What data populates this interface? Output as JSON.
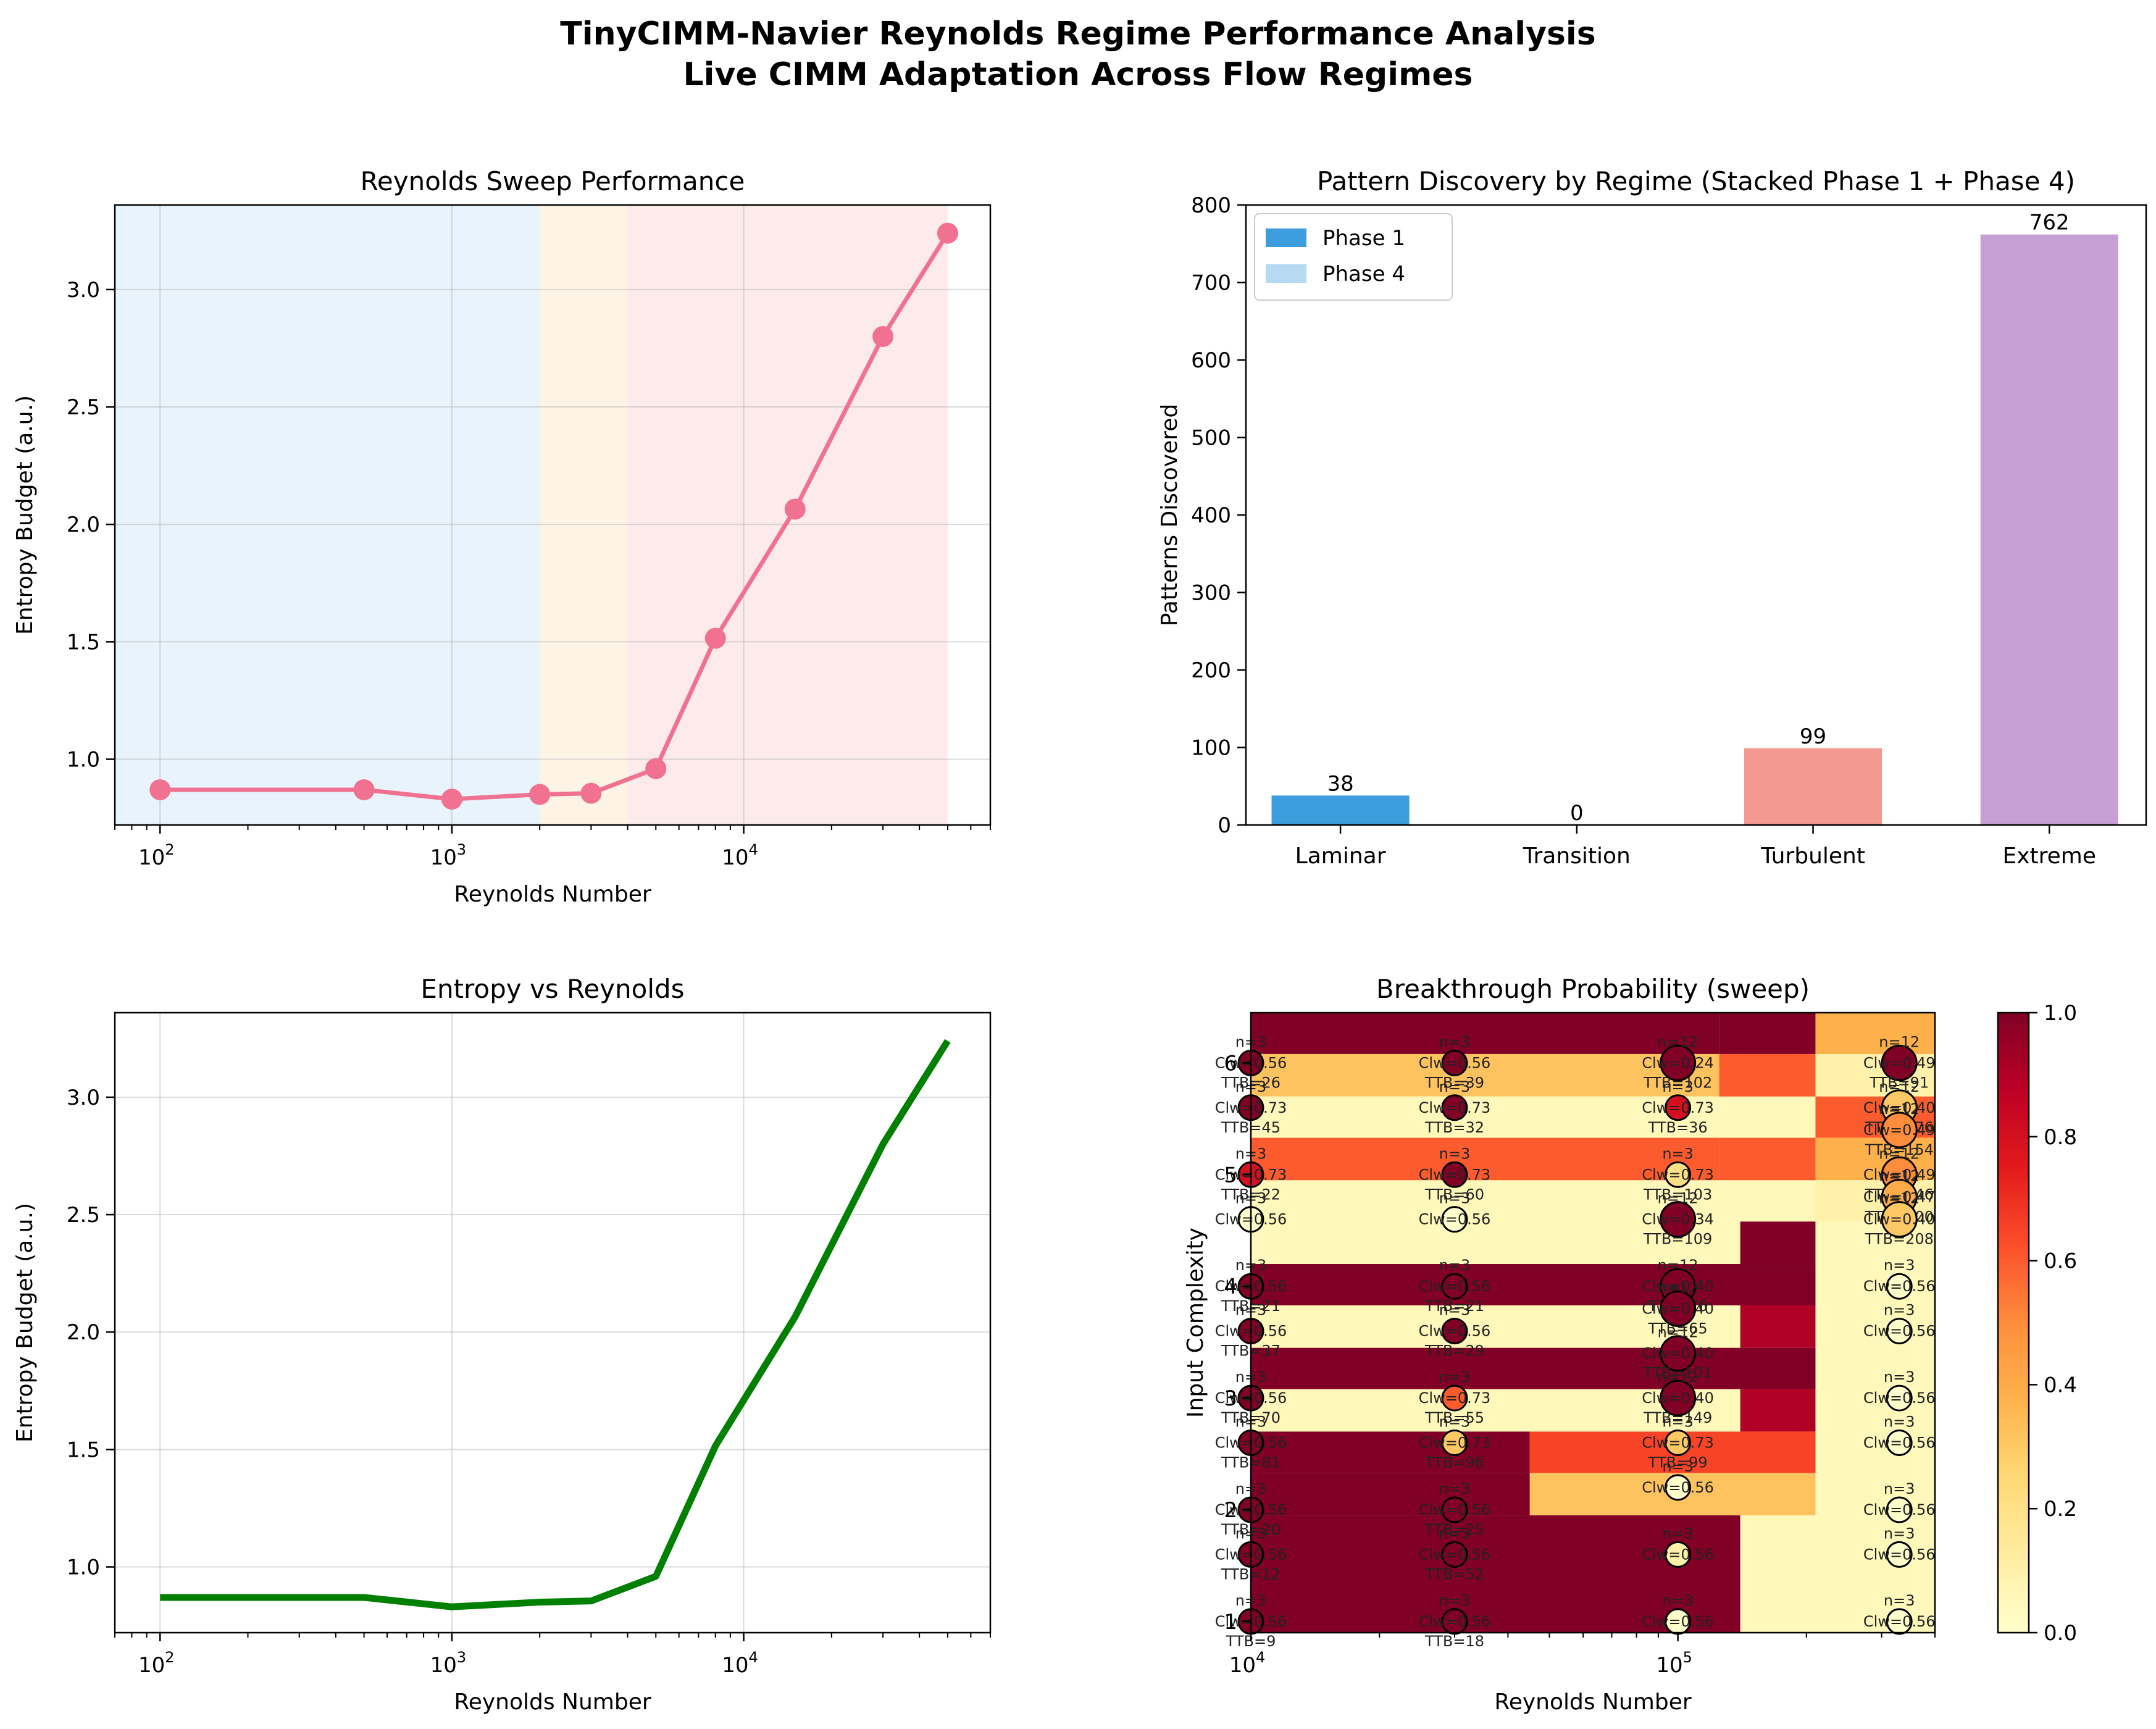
{
  "figure": {
    "title_line1": "TinyCIMM-Navier Reynolds Regime Performance Analysis",
    "title_line2": "Live CIMM Adaptation Across Flow Regimes"
  },
  "chart_data": [
    {
      "id": "sweep",
      "type": "line",
      "title": "Reynolds Sweep Performance",
      "xlabel": "Reynolds Number",
      "ylabel": "Entropy Budget (a.u.)",
      "xscale": "log",
      "xlim": [
        70,
        70000
      ],
      "ylim": [
        0.72,
        3.36
      ],
      "xticks": [
        {
          "v": 100,
          "exp": "2"
        },
        {
          "v": 1000,
          "exp": "3"
        },
        {
          "v": 10000,
          "exp": "4"
        }
      ],
      "yticks": [
        1.0,
        1.5,
        2.0,
        2.5,
        3.0
      ],
      "grid": true,
      "regime_bands": [
        {
          "from": 70,
          "to": 2000,
          "color": "#d6eaf8"
        },
        {
          "from": 2000,
          "to": 4000,
          "color": "#fdebd0"
        },
        {
          "from": 4000,
          "to": 50000,
          "color": "#fadbd8"
        }
      ],
      "color": "#f07290",
      "x": [
        100,
        500,
        1000,
        2000,
        3000,
        5000,
        8000,
        15000,
        30000,
        50000
      ],
      "y": [
        0.87,
        0.87,
        0.83,
        0.85,
        0.855,
        0.96,
        1.515,
        2.065,
        2.8,
        3.24
      ]
    },
    {
      "id": "patterns",
      "type": "bar",
      "title": "Pattern Discovery by Regime (Stacked Phase 1 + Phase 4)",
      "ylabel": "Patterns Discovered",
      "ylim": [
        0,
        800
      ],
      "yticks": [
        0,
        100,
        200,
        300,
        400,
        500,
        600,
        700,
        800
      ],
      "categories": [
        "Laminar",
        "Transition",
        "Turbulent",
        "Extreme"
      ],
      "series": [
        {
          "name": "Phase 1",
          "color": "#3498db",
          "values": [
            38,
            0,
            99,
            762
          ]
        },
        {
          "name": "Phase 4",
          "color": "#85c1e9",
          "values": [
            0,
            0,
            0,
            0
          ]
        }
      ],
      "bar_colors": [
        "#3498db",
        "#f39c12",
        "#f1948a",
        "#c39bd3"
      ],
      "totals": [
        "38",
        "0",
        "99",
        "762"
      ],
      "legend": "top-left"
    },
    {
      "id": "entropy",
      "type": "line",
      "title": "Entropy vs Reynolds",
      "xlabel": "Reynolds Number",
      "ylabel": "Entropy Budget (a.u.)",
      "xscale": "log",
      "xlim": [
        70,
        70000
      ],
      "ylim": [
        0.72,
        3.36
      ],
      "xticks": [
        {
          "v": 100,
          "exp": "2"
        },
        {
          "v": 1000,
          "exp": "3"
        },
        {
          "v": 10000,
          "exp": "4"
        }
      ],
      "yticks": [
        1.0,
        1.5,
        2.0,
        2.5,
        3.0
      ],
      "grid": true,
      "color": "#008000",
      "x": [
        100,
        500,
        1000,
        2000,
        3000,
        5000,
        8000,
        15000,
        30000,
        50000
      ],
      "y": [
        0.87,
        0.87,
        0.83,
        0.85,
        0.855,
        0.96,
        1.515,
        2.065,
        2.8,
        3.24
      ]
    },
    {
      "id": "breakthrough",
      "type": "heatmap",
      "title": "Breakthrough Probability (sweep)",
      "xlabel": "Reynolds Number",
      "ylabel": "Input Complexity",
      "xscale": "log",
      "xlim": [
        10000,
        400000
      ],
      "ylim": [
        0.9,
        6.45
      ],
      "xticks": [
        {
          "v": 10000,
          "exp": "4"
        },
        {
          "v": 100000,
          "exp": "5"
        }
      ],
      "yticks": [
        1,
        2,
        3,
        4,
        5,
        6
      ],
      "colorbar": {
        "min": 0.0,
        "max": 1.0,
        "ticks": [
          "0.0",
          "0.2",
          "0.4",
          "0.6",
          "0.8",
          "1.0"
        ],
        "colormap": "YlOrRd"
      },
      "cells": [
        {
          "x0": 10000,
          "x1": 125000,
          "y0": 6.08,
          "y1": 6.45,
          "v": 1.0
        },
        {
          "x0": 125000,
          "x1": 210000,
          "y0": 6.08,
          "y1": 6.45,
          "v": 1.0
        },
        {
          "x0": 210000,
          "x1": 400000,
          "y0": 6.08,
          "y1": 6.45,
          "v": 0.38
        },
        {
          "x0": 10000,
          "x1": 125000,
          "y0": 5.7,
          "y1": 6.08,
          "v": 0.32
        },
        {
          "x0": 125000,
          "x1": 210000,
          "y0": 5.7,
          "y1": 6.08,
          "v": 0.6
        },
        {
          "x0": 210000,
          "x1": 400000,
          "y0": 5.7,
          "y1": 6.08,
          "v": 0.1
        },
        {
          "x0": 10000,
          "x1": 125000,
          "y0": 5.33,
          "y1": 5.7,
          "v": 0.05
        },
        {
          "x0": 210000,
          "x1": 400000,
          "y0": 5.33,
          "y1": 5.7,
          "v": 0.6
        },
        {
          "x0": 10000,
          "x1": 125000,
          "y0": 4.95,
          "y1": 5.33,
          "v": 0.6
        },
        {
          "x0": 125000,
          "x1": 210000,
          "y0": 4.95,
          "y1": 5.33,
          "v": 0.6
        },
        {
          "x0": 210000,
          "x1": 400000,
          "y0": 4.95,
          "y1": 5.33,
          "v": 0.38
        },
        {
          "x0": 10000,
          "x1": 400000,
          "y0": 4.58,
          "y1": 4.95,
          "v": 0.05
        },
        {
          "x0": 210000,
          "x1": 400000,
          "y0": 4.58,
          "y1": 4.95,
          "v": 0.1
        },
        {
          "x0": 10000,
          "x1": 140000,
          "y0": 4.2,
          "y1": 4.58,
          "v": 0.05
        },
        {
          "x0": 140000,
          "x1": 210000,
          "y0": 4.2,
          "y1": 4.58,
          "v": 1.0
        },
        {
          "x0": 210000,
          "x1": 400000,
          "y0": 4.2,
          "y1": 4.58,
          "v": 0.05
        },
        {
          "x0": 10000,
          "x1": 210000,
          "y0": 3.83,
          "y1": 4.2,
          "v": 1.0
        },
        {
          "x0": 10000,
          "x1": 140000,
          "y0": 3.45,
          "y1": 3.83,
          "v": 0.05
        },
        {
          "x0": 140000,
          "x1": 210000,
          "y0": 3.45,
          "y1": 3.83,
          "v": 0.9
        },
        {
          "x0": 10000,
          "x1": 210000,
          "y0": 3.08,
          "y1": 3.45,
          "v": 1.0
        },
        {
          "x0": 10000,
          "x1": 140000,
          "y0": 2.7,
          "y1": 3.08,
          "v": 0.05
        },
        {
          "x0": 140000,
          "x1": 210000,
          "y0": 2.7,
          "y1": 3.08,
          "v": 0.9
        },
        {
          "x0": 10000,
          "x1": 45000,
          "y0": 2.33,
          "y1": 2.7,
          "v": 1.0
        },
        {
          "x0": 45000,
          "x1": 210000,
          "y0": 2.33,
          "y1": 2.7,
          "v": 0.65
        },
        {
          "x0": 10000,
          "x1": 45000,
          "y0": 1.95,
          "y1": 2.33,
          "v": 1.0
        },
        {
          "x0": 45000,
          "x1": 210000,
          "y0": 1.95,
          "y1": 2.33,
          "v": 0.32
        },
        {
          "x0": 10000,
          "x1": 140000,
          "y0": 0.9,
          "y1": 1.95,
          "v": 1.0
        },
        {
          "x0": 140000,
          "x1": 210000,
          "y0": 0.9,
          "y1": 1.95,
          "v": 0.05
        }
      ],
      "points": [
        {
          "x": 10000,
          "y": 6.0,
          "n": "n=3",
          "c": "Clw=0.56",
          "t": "TTB=26",
          "v": 1.0
        },
        {
          "x": 10000,
          "y": 5.6,
          "n": "n=3",
          "c": "Clw=0.73",
          "t": "TTB=45",
          "v": 1.0
        },
        {
          "x": 10000,
          "y": 5.0,
          "n": "n=3",
          "c": "Clw=0.73",
          "t": "TTB=22",
          "v": 0.8
        },
        {
          "x": 10000,
          "y": 4.6,
          "n": "n=3",
          "c": "Clw=0.56",
          "t": "",
          "v": 0.0
        },
        {
          "x": 10000,
          "y": 4.0,
          "n": "n=3",
          "c": "Clw=0.56",
          "t": "TTB=21",
          "v": 1.0
        },
        {
          "x": 10000,
          "y": 3.6,
          "n": "n=3",
          "c": "Clw=0.56",
          "t": "TTB=37",
          "v": 1.0
        },
        {
          "x": 10000,
          "y": 3.0,
          "n": "n=3",
          "c": "Clw=0.56",
          "t": "TTB=70",
          "v": 1.0
        },
        {
          "x": 10000,
          "y": 2.6,
          "n": "n=3",
          "c": "Clw=0.56",
          "t": "TTB=81",
          "v": 1.0
        },
        {
          "x": 10000,
          "y": 2.0,
          "n": "n=3",
          "c": "Clw=0.56",
          "t": "TTB=20",
          "v": 1.0
        },
        {
          "x": 10000,
          "y": 1.6,
          "n": "n=3",
          "c": "Clw=0.56",
          "t": "TTB=12",
          "v": 1.0
        },
        {
          "x": 10000,
          "y": 1.0,
          "n": "n=3",
          "c": "Clw=0.56",
          "t": "TTB=9",
          "v": 1.0
        },
        {
          "x": 30000,
          "y": 6.0,
          "n": "n=3",
          "c": "Clw=0.56",
          "t": "TTB=39",
          "v": 1.0
        },
        {
          "x": 30000,
          "y": 5.6,
          "n": "n=3",
          "c": "Clw=0.73",
          "t": "TTB=32",
          "v": 1.0
        },
        {
          "x": 30000,
          "y": 5.0,
          "n": "n=3",
          "c": "Clw=0.73",
          "t": "TTB=60",
          "v": 1.0
        },
        {
          "x": 30000,
          "y": 4.6,
          "n": "n=3",
          "c": "Clw=0.56",
          "t": "",
          "v": 0.0
        },
        {
          "x": 30000,
          "y": 4.0,
          "n": "n=3",
          "c": "Clw=0.56",
          "t": "TTB=21",
          "v": 1.0
        },
        {
          "x": 30000,
          "y": 3.6,
          "n": "n=3",
          "c": "Clw=0.56",
          "t": "TTB=29",
          "v": 1.0
        },
        {
          "x": 30000,
          "y": 3.0,
          "n": "n=3",
          "c": "Clw=0.73",
          "t": "TTB=55",
          "v": 0.6
        },
        {
          "x": 30000,
          "y": 2.6,
          "n": "n=3",
          "c": "Clw=0.73",
          "t": "TTB=96",
          "v": 0.3
        },
        {
          "x": 30000,
          "y": 2.0,
          "n": "n=3",
          "c": "Clw=0.56",
          "t": "TTB=25",
          "v": 1.0
        },
        {
          "x": 30000,
          "y": 1.6,
          "n": "n=3",
          "c": "Clw=0.56",
          "t": "TTB=52",
          "v": 1.0
        },
        {
          "x": 30000,
          "y": 1.0,
          "n": "n=3",
          "c": "Clw=0.56",
          "t": "TTB=18",
          "v": 1.0
        },
        {
          "x": 100000,
          "y": 6.0,
          "n": "n=12",
          "c": "Clw=0.24",
          "t": "TTB=102",
          "v": 1.0
        },
        {
          "x": 100000,
          "y": 5.6,
          "n": "n=3",
          "c": "Clw=0.73",
          "t": "TTB=36",
          "v": 0.8
        },
        {
          "x": 100000,
          "y": 5.0,
          "n": "n=3",
          "c": "Clw=0.73",
          "t": "TTB=103",
          "v": 0.2
        },
        {
          "x": 100000,
          "y": 4.6,
          "n": "n=12",
          "c": "Clw=0.34",
          "t": "TTB=109",
          "v": 1.0
        },
        {
          "x": 100000,
          "y": 4.0,
          "n": "n=12",
          "c": "Clw=0.40",
          "t": "TTB=76",
          "v": 1.0
        },
        {
          "x": 100000,
          "y": 3.8,
          "n": "n=12",
          "c": "Clw=0.40",
          "t": "TTB=65",
          "v": 1.0
        },
        {
          "x": 100000,
          "y": 3.4,
          "n": "n=12",
          "c": "Clw=0.40",
          "t": "TTB=101",
          "v": 1.0
        },
        {
          "x": 100000,
          "y": 3.0,
          "n": "n=12",
          "c": "Clw=0.40",
          "t": "TTB=149",
          "v": 1.0
        },
        {
          "x": 100000,
          "y": 2.6,
          "n": "n=3",
          "c": "Clw=0.73",
          "t": "TTB=99",
          "v": 0.3
        },
        {
          "x": 100000,
          "y": 2.2,
          "n": "n=3",
          "c": "Clw=0.56",
          "t": "",
          "v": 0.0
        },
        {
          "x": 100000,
          "y": 1.6,
          "n": "n=3",
          "c": "Clw=0.56",
          "t": "",
          "v": 0.1
        },
        {
          "x": 100000,
          "y": 1.0,
          "n": "n=3",
          "c": "Clw=0.56",
          "t": "",
          "v": 0.0
        },
        {
          "x": 330000,
          "y": 6.0,
          "n": "n=12",
          "c": "Clw=0.49",
          "t": "TTB=91",
          "v": 1.0
        },
        {
          "x": 330000,
          "y": 5.6,
          "n": "n=12",
          "c": "Clw=0.40",
          "t": "TTB=176",
          "v": 0.3
        },
        {
          "x": 330000,
          "y": 5.4,
          "n": "n=12",
          "c": "Clw=0.49",
          "t": "TTB=154",
          "v": 0.5
        },
        {
          "x": 330000,
          "y": 5.0,
          "n": "n=12",
          "c": "Clw=0.49",
          "t": "TTB=146",
          "v": 0.5
        },
        {
          "x": 330000,
          "y": 4.8,
          "n": "n=12",
          "c": "Clw=0.47",
          "t": "TTB=200",
          "v": 0.4
        },
        {
          "x": 330000,
          "y": 4.6,
          "n": "n=12",
          "c": "Clw=0.40",
          "t": "TTB=208",
          "v": 0.3
        },
        {
          "x": 330000,
          "y": 4.0,
          "n": "n=3",
          "c": "Clw=0.56",
          "t": "",
          "v": 0.0
        },
        {
          "x": 330000,
          "y": 3.6,
          "n": "n=3",
          "c": "Clw=0.56",
          "t": "",
          "v": 0.0
        },
        {
          "x": 330000,
          "y": 3.0,
          "n": "n=3",
          "c": "Clw=0.56",
          "t": "",
          "v": 0.0
        },
        {
          "x": 330000,
          "y": 2.6,
          "n": "n=3",
          "c": "Clw=0.56",
          "t": "",
          "v": 0.0
        },
        {
          "x": 330000,
          "y": 2.0,
          "n": "n=3",
          "c": "Clw=0.56",
          "t": "",
          "v": 0.0
        },
        {
          "x": 330000,
          "y": 1.6,
          "n": "n=3",
          "c": "Clw=0.56",
          "t": "",
          "v": 0.0
        },
        {
          "x": 330000,
          "y": 1.0,
          "n": "n=3",
          "c": "Clw=0.56",
          "t": "",
          "v": 0.0
        }
      ]
    }
  ]
}
